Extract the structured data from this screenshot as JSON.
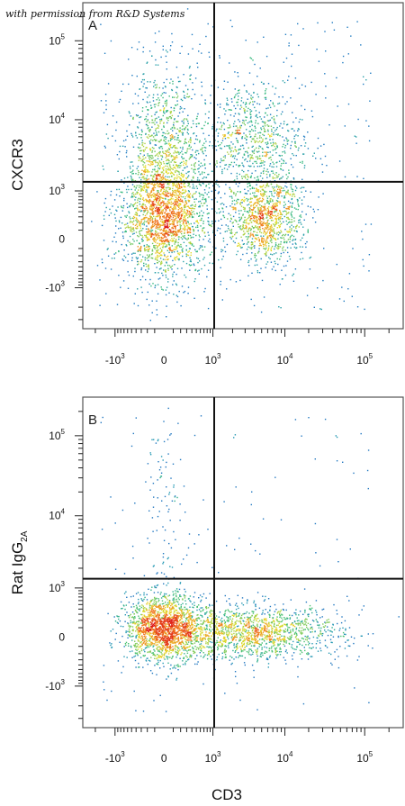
{
  "credit": "with permission from R&D Systems",
  "chart_data": [
    {
      "type": "scatter",
      "subtype": "flow-cytometry-density-dot-plot",
      "panel_label": "A",
      "xlabel": "CD3",
      "ylabel": "CXCR3",
      "x_scale": "biexponential",
      "y_scale": "biexponential",
      "xlim": [
        -3000,
        300000
      ],
      "ylim": [
        -4000,
        300000
      ],
      "x_ticks": [
        {
          "base": "-10",
          "exp": "3",
          "value": -1000
        },
        {
          "base": "0",
          "exp": "",
          "value": 0
        },
        {
          "base": "10",
          "exp": "3",
          "value": 1000
        },
        {
          "base": "10",
          "exp": "4",
          "value": 10000
        },
        {
          "base": "10",
          "exp": "5",
          "value": 100000
        }
      ],
      "y_ticks": [
        {
          "base": "-10",
          "exp": "3",
          "value": -1000
        },
        {
          "base": "0",
          "exp": "",
          "value": 0
        },
        {
          "base": "10",
          "exp": "3",
          "value": 1000
        },
        {
          "base": "10",
          "exp": "4",
          "value": 10000
        },
        {
          "base": "10",
          "exp": "5",
          "value": 100000
        }
      ],
      "quadrant_gate": {
        "x": 1050,
        "y": 1400
      },
      "populations": [
        {
          "x_center": 0,
          "y_center": 300,
          "x_spread": 0.07,
          "y_spread": 0.09,
          "count": 1700
        },
        {
          "x_center": 0,
          "y_center": 3000,
          "x_spread": 0.06,
          "y_spread": 0.14,
          "count": 1000
        },
        {
          "x_center": 5500,
          "y_center": 300,
          "x_spread": 0.06,
          "y_spread": 0.07,
          "count": 1100
        },
        {
          "x_center": 3500,
          "y_center": 6000,
          "x_spread": 0.08,
          "y_spread": 0.08,
          "count": 650
        }
      ],
      "scatter_background_count": 350,
      "grid": false,
      "legend": "none"
    },
    {
      "type": "scatter",
      "subtype": "flow-cytometry-density-dot-plot",
      "panel_label": "B",
      "xlabel": "CD3",
      "ylabel_main": "Rat IgG",
      "ylabel_sub": "2A",
      "x_scale": "biexponential",
      "y_scale": "biexponential",
      "xlim": [
        -3000,
        300000
      ],
      "ylim": [
        -4000,
        300000
      ],
      "x_ticks": [
        {
          "base": "-10",
          "exp": "3",
          "value": -1000
        },
        {
          "base": "0",
          "exp": "",
          "value": 0
        },
        {
          "base": "10",
          "exp": "3",
          "value": 1000
        },
        {
          "base": "10",
          "exp": "4",
          "value": 10000
        },
        {
          "base": "10",
          "exp": "5",
          "value": 100000
        }
      ],
      "y_ticks": [
        {
          "base": "10",
          "exp": "5",
          "value": 100000
        },
        {
          "base": "10",
          "exp": "4",
          "value": 10000
        },
        {
          "base": "10",
          "exp": "3",
          "value": 1000
        },
        {
          "base": "0",
          "exp": "",
          "value": 0
        },
        {
          "base": "-10",
          "exp": "3",
          "value": -1000
        }
      ],
      "quadrant_gate": {
        "x": 1050,
        "y": 1400
      },
      "populations": [
        {
          "x_center": 0,
          "y_center": 100,
          "x_spread": 0.06,
          "y_spread": 0.05,
          "count": 1700
        },
        {
          "x_center": 3500,
          "y_center": 50,
          "x_spread": 0.14,
          "y_spread": 0.04,
          "count": 1500
        },
        {
          "x_center": 0,
          "y_center": 6000,
          "x_spread": 0.03,
          "y_spread": 0.25,
          "count": 120
        }
      ],
      "scatter_background_count": 120,
      "grid": false,
      "legend": "none"
    }
  ]
}
